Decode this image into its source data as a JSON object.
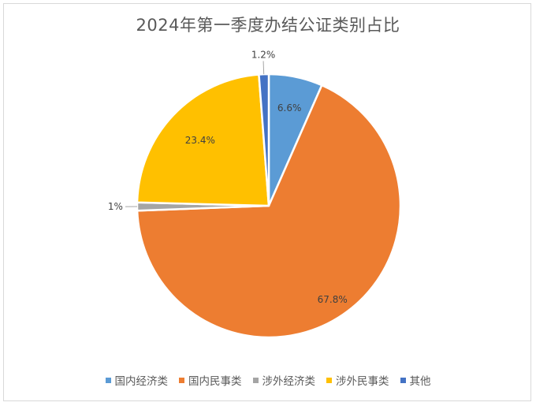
{
  "chart_data": {
    "type": "pie",
    "title": "2024年第一季度办结公证类别占比",
    "categories": [
      "国内经济类",
      "国内民事类",
      "涉外经济类",
      "涉外民事类",
      "其他"
    ],
    "values": [
      6.6,
      67.8,
      1.0,
      23.4,
      1.2
    ],
    "data_labels": [
      "6.6%",
      "67.8%",
      "1%",
      "23.4%",
      "1.2%"
    ],
    "colors": [
      "#5B9BD5",
      "#ED7D31",
      "#A5A5A5",
      "#FFC000",
      "#4472C4"
    ],
    "start_angle_deg": 0,
    "direction": "clockwise",
    "legend_position": "bottom"
  }
}
